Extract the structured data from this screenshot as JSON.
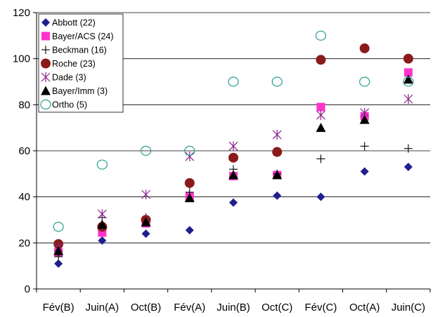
{
  "chart_data": {
    "type": "scatter",
    "categories": [
      "Fév(B)",
      "Juin(A)",
      "Oct(B)",
      "Fév(A)",
      "Juin(B)",
      "Oct(C)",
      "Fév(C)",
      "Oct(A)",
      "Juin(C)"
    ],
    "ylim": [
      0,
      120
    ],
    "yticks": [
      0,
      20,
      40,
      60,
      80,
      100,
      120
    ],
    "grid": true,
    "legend_position": "top-left",
    "series": [
      {
        "name": "Abbott (22)",
        "marker": "diamond",
        "color": "#1f1f8f",
        "values": [
          11,
          21,
          24,
          25.5,
          37.5,
          40.5,
          40,
          51,
          53
        ]
      },
      {
        "name": "Bayer/ACS (24)",
        "marker": "square",
        "color": "#ff33cc",
        "values": [
          16,
          24.5,
          28.5,
          40,
          49,
          49.5,
          79,
          75,
          94
        ]
      },
      {
        "name": "Beckman (16)",
        "marker": "plus",
        "color": "#000000",
        "values": [
          14,
          31,
          31,
          42,
          52,
          50,
          56.5,
          62,
          61
        ]
      },
      {
        "name": "Roche (23)",
        "marker": "circle",
        "color": "#8b1a1a",
        "values": [
          19.5,
          27,
          30,
          46,
          57,
          59.5,
          99.5,
          104.5,
          100
        ]
      },
      {
        "name": "Dade (3)",
        "marker": "asterisk",
        "color": "#882288",
        "values": [
          18,
          32.5,
          41,
          57.5,
          62,
          67,
          75.5,
          76.5,
          82.5
        ]
      },
      {
        "name": "Bayer/Imm (3)",
        "marker": "triangle",
        "color": "#000000",
        "values": [
          16.5,
          28,
          29,
          39.5,
          49.5,
          49.5,
          70,
          73.5,
          91
        ]
      },
      {
        "name": "Ortho (5)",
        "marker": "ring",
        "color": "#2a9d8f",
        "values": [
          27,
          54,
          60,
          60,
          90,
          90,
          110,
          90,
          90
        ]
      }
    ]
  }
}
